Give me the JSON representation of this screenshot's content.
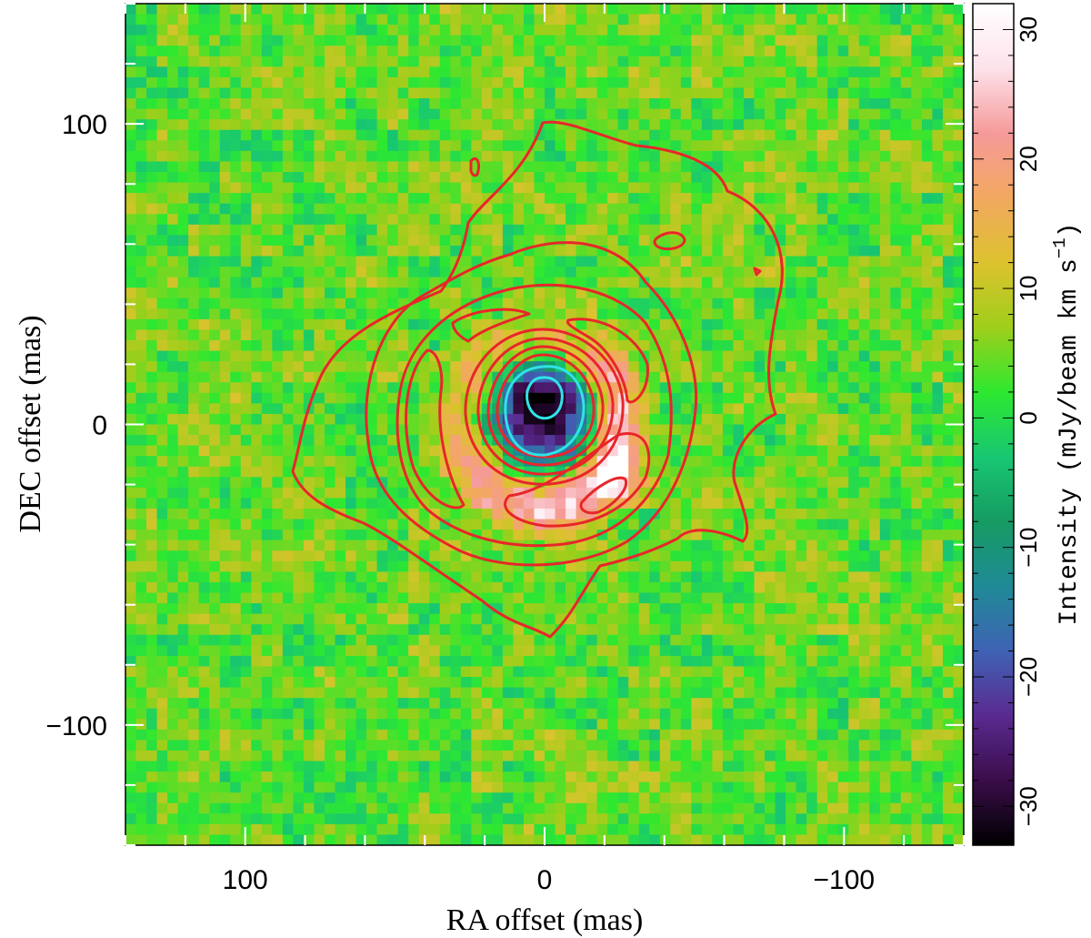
{
  "chart_data": {
    "type": "heatmap",
    "xlabel": "RA offset (mas)",
    "ylabel": "DEC offset (mas)",
    "xlim": [
      140,
      -140
    ],
    "ylim": [
      -140,
      140
    ],
    "x_ticks": [
      100,
      0,
      -100
    ],
    "x_tick_labels": [
      "100",
      "0",
      "−100"
    ],
    "y_ticks": [
      100,
      0,
      -100
    ],
    "y_tick_labels": [
      "100",
      "0",
      "−100"
    ],
    "colorbar": {
      "label": "Intensity (mJy/beam km s",
      "label_exponent": "−1",
      "label_close": ")",
      "range": [
        -33,
        32
      ],
      "ticks": [
        30,
        20,
        10,
        0,
        -10,
        -20,
        -30
      ],
      "tick_labels": [
        "30",
        "20",
        "10",
        "0",
        "−10",
        "−20",
        "−30"
      ],
      "colormap": [
        "#000000",
        "#3a0d4a",
        "#5a2a90",
        "#3f62b4",
        "#1f8a96",
        "#169b62",
        "#18c772",
        "#2ee830",
        "#9fce1a",
        "#ddc22f",
        "#f2a860",
        "#f59a9a",
        "#fde2ea",
        "#ffffff"
      ]
    },
    "colors": {
      "background_emission": "#1fa767",
      "emission_contours": "#e8262a",
      "absorption_contours": "#2fe3e8"
    },
    "features": {
      "absorption_peak": {
        "x": 0,
        "y": 6,
        "value": -32
      },
      "emission_ring": {
        "center": [
          2,
          0
        ],
        "radius_mas": 27,
        "peak": {
          "x": -25,
          "y": -18,
          "value": 31
        }
      }
    }
  }
}
